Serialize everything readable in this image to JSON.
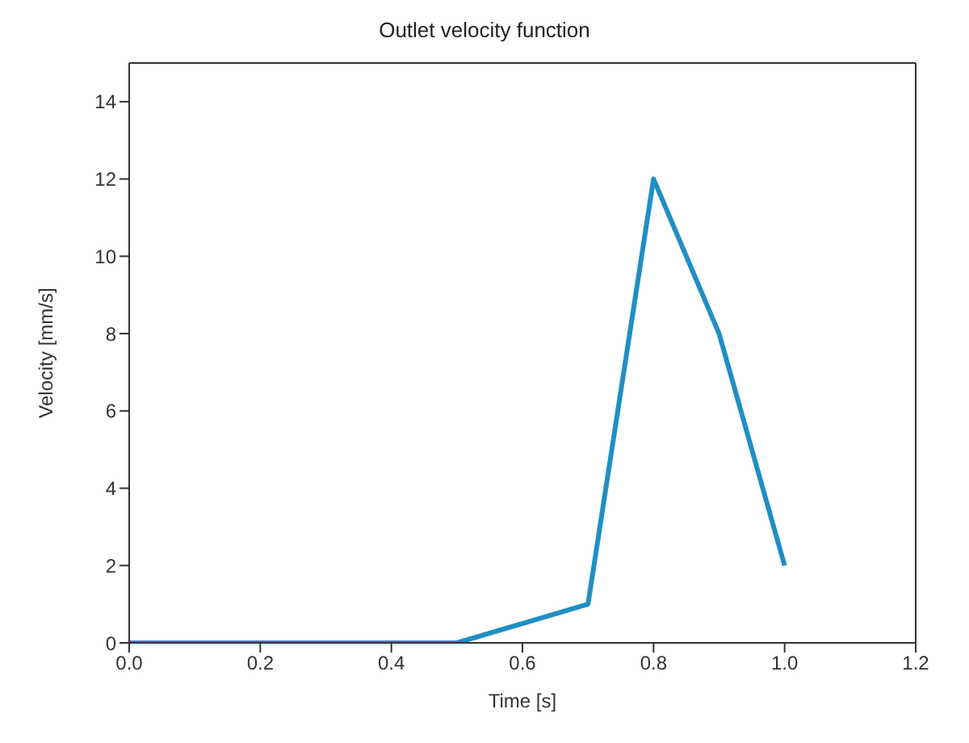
{
  "chart_data": {
    "type": "line",
    "title": "Outlet velocity function",
    "xlabel": "Time [s]",
    "ylabel": "Velocity [mm/s]",
    "x": [
      0,
      0.5,
      0.7,
      0.8,
      0.9,
      1.0
    ],
    "series": [
      {
        "color": "#1f8fc3",
        "values": [
          0,
          0,
          1,
          12,
          8,
          2
        ]
      }
    ],
    "xlim": [
      0,
      1.2
    ],
    "xticks": [
      {
        "value": 0,
        "label": "0.0"
      },
      {
        "value": 0.2,
        "label": "0.2"
      },
      {
        "value": 0.4,
        "label": "0.4"
      },
      {
        "value": 0.6,
        "label": "0.6"
      },
      {
        "value": 0.8,
        "label": "0.8"
      },
      {
        "value": 1,
        "label": "1.0"
      },
      {
        "value": 1.2,
        "label": "1.2"
      }
    ],
    "ylim": [
      0,
      15
    ],
    "yticks": [
      0,
      2,
      4,
      6,
      8,
      10,
      12,
      14
    ],
    "grid": false,
    "legend": false,
    "marker": "none",
    "line_style": "solid"
  }
}
